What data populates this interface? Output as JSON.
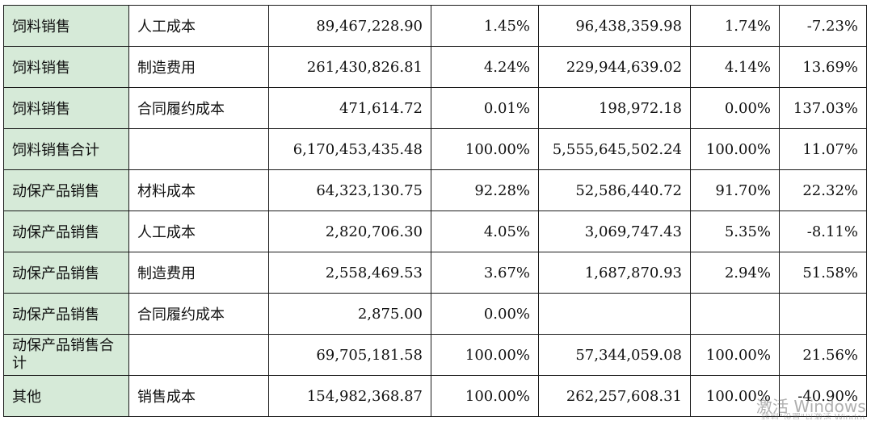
{
  "rows": [
    {
      "category": "饲料销售",
      "item": "人工成本",
      "current_amount": "89,467,228.90",
      "current_ratio": "1.45%",
      "prior_amount": "96,438,359.98",
      "prior_ratio": "1.74%",
      "change": "-7.23%"
    },
    {
      "category": "饲料销售",
      "item": "制造费用",
      "current_amount": "261,430,826.81",
      "current_ratio": "4.24%",
      "prior_amount": "229,944,639.02",
      "prior_ratio": "4.14%",
      "change": "13.69%"
    },
    {
      "category": "饲料销售",
      "item": "合同履约成本",
      "current_amount": "471,614.72",
      "current_ratio": "0.01%",
      "prior_amount": "198,972.18",
      "prior_ratio": "0.00%",
      "change": "137.03%"
    },
    {
      "category": "饲料销售合计",
      "item": "",
      "current_amount": "6,170,453,435.48",
      "current_ratio": "100.00%",
      "prior_amount": "5,555,645,502.24",
      "prior_ratio": "100.00%",
      "change": "11.07%"
    },
    {
      "category": "动保产品销售",
      "item": "材料成本",
      "current_amount": "64,323,130.75",
      "current_ratio": "92.28%",
      "prior_amount": "52,586,440.72",
      "prior_ratio": "91.70%",
      "change": "22.32%"
    },
    {
      "category": "动保产品销售",
      "item": "人工成本",
      "current_amount": "2,820,706.30",
      "current_ratio": "4.05%",
      "prior_amount": "3,069,747.43",
      "prior_ratio": "5.35%",
      "change": "-8.11%"
    },
    {
      "category": "动保产品销售",
      "item": "制造费用",
      "current_amount": "2,558,469.53",
      "current_ratio": "3.67%",
      "prior_amount": "1,687,870.93",
      "prior_ratio": "2.94%",
      "change": "51.58%"
    },
    {
      "category": "动保产品销售",
      "item": "合同履约成本",
      "current_amount": "2,875.00",
      "current_ratio": "0.00%",
      "prior_amount": "",
      "prior_ratio": "",
      "change": ""
    },
    {
      "category": "动保产品销售合计",
      "item": "",
      "current_amount": "69,705,181.58",
      "current_ratio": "100.00%",
      "prior_amount": "57,344,059.08",
      "prior_ratio": "100.00%",
      "change": "21.56%"
    },
    {
      "category": "其他",
      "item": "销售成本",
      "current_amount": "154,982,368.87",
      "current_ratio": "100.00%",
      "prior_amount": "262,257,608.31",
      "prior_ratio": "100.00%",
      "change": "-40.90%"
    }
  ],
  "watermark": {
    "text": "激活 Windows",
    "subtext": "转到\"设置\"以激活 Windows。"
  }
}
